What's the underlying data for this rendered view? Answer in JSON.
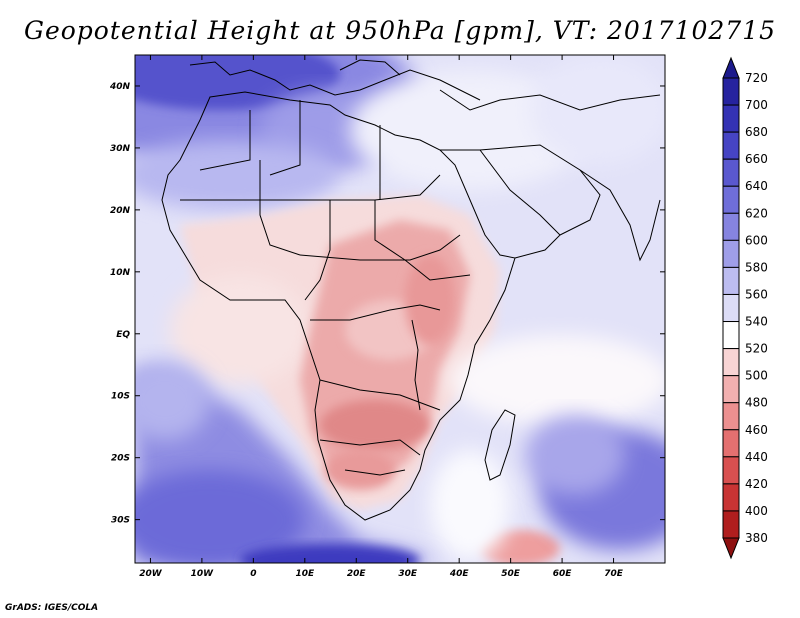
{
  "title": "Geopotential Height at 950hPa [gpm], VT: 2017102715",
  "credit": "GrADS: IGES/COLA",
  "map": {
    "lon_labels": [
      "20W",
      "10W",
      "0",
      "10E",
      "20E",
      "30E",
      "40E",
      "50E",
      "60E",
      "70E"
    ],
    "lat_labels": [
      "40N",
      "30N",
      "20N",
      "10N",
      "EQ",
      "10S",
      "20S",
      "30S"
    ],
    "lon_range": [
      -23,
      80
    ],
    "lat_range": [
      -37,
      45
    ]
  },
  "colorbar": {
    "labels": [
      "720",
      "700",
      "680",
      "660",
      "640",
      "620",
      "600",
      "580",
      "560",
      "540",
      "520",
      "500",
      "480",
      "460",
      "440",
      "420",
      "400",
      "380"
    ],
    "colors": [
      "#1c1a8c",
      "#26239f",
      "#3432b4",
      "#4644c4",
      "#5a58cf",
      "#6f6ed9",
      "#8684e0",
      "#9f9ee8",
      "#bcbcf0",
      "#dcdcf6",
      "#ffffff",
      "#f8d4d4",
      "#f2b0b0",
      "#ec9090",
      "#e47070",
      "#d85050",
      "#c83434",
      "#b01e1e",
      "#8e1010"
    ]
  }
}
